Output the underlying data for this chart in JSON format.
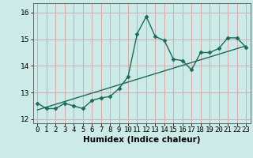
{
  "xlabel": "Humidex (Indice chaleur)",
  "ylabel": "",
  "background_color": "#cceae8",
  "grid_color": "#d4aaaa",
  "line_color": "#1a6b5a",
  "xlim": [
    -0.5,
    23.5
  ],
  "ylim": [
    11.85,
    16.35
  ],
  "yticks": [
    12,
    13,
    14,
    15,
    16
  ],
  "xticks": [
    0,
    1,
    2,
    3,
    4,
    5,
    6,
    7,
    8,
    9,
    10,
    11,
    12,
    13,
    14,
    15,
    16,
    17,
    18,
    19,
    20,
    21,
    22,
    23
  ],
  "x": [
    0,
    1,
    2,
    3,
    4,
    5,
    6,
    7,
    8,
    9,
    10,
    11,
    12,
    13,
    14,
    15,
    16,
    17,
    18,
    19,
    20,
    21,
    22,
    23
  ],
  "y": [
    12.6,
    12.4,
    12.4,
    12.6,
    12.5,
    12.4,
    12.7,
    12.8,
    12.85,
    13.15,
    13.6,
    15.2,
    15.85,
    15.1,
    14.95,
    14.25,
    14.2,
    13.85,
    14.5,
    14.5,
    14.65,
    15.05,
    15.05,
    14.7
  ],
  "trend_x": [
    0,
    23
  ],
  "trend_y": [
    12.35,
    14.75
  ],
  "marker": "D",
  "markersize": 2.5,
  "linewidth": 1.0,
  "tick_fontsize": 6.5,
  "label_fontsize": 7.5
}
